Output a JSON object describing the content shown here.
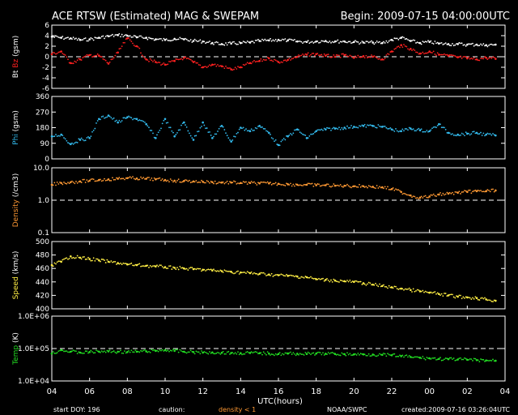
{
  "header": {
    "title": "ACE RTSW (Estimated) MAG & SWEPAM",
    "begin": "Begin: 2009-07-15 04:00:00UTC"
  },
  "footer": {
    "start_doy": "start DOY: 196",
    "caution": "caution:",
    "density_note": "density < 1",
    "agency": "NOAA/SWPC",
    "created": "created:2009-07-16 03:26:04UTC"
  },
  "x_axis": {
    "label": "UTC(hours)",
    "ticks": [
      "04",
      "06",
      "08",
      "10",
      "12",
      "14",
      "16",
      "18",
      "20",
      "22",
      "00",
      "02",
      "04"
    ]
  },
  "colors": {
    "white": "#ffffff",
    "red": "#ff2020",
    "cyan": "#33bbee",
    "orange": "#ff9933",
    "yellow": "#ffee44",
    "green": "#22dd22"
  },
  "chart_data": [
    {
      "type": "scatter",
      "panel": "mag",
      "ylim": [
        -6,
        6
      ],
      "yticks": [
        6,
        4,
        2,
        0,
        -2,
        -4,
        -6
      ],
      "ytick_labels": [
        "6",
        "4",
        "2",
        "0",
        "-2",
        "-4",
        "-6"
      ],
      "ylabel_parts": [
        {
          "text": "Bt",
          "color": "#ffffff"
        },
        {
          "text": " Bz",
          "color": "#ff2020"
        },
        {
          "text": " (gsm)",
          "color": "#ffffff"
        }
      ],
      "dashed_ref": 0,
      "series": [
        {
          "key": "Bt",
          "color": "#ffffff",
          "x": [
            4,
            4.5,
            5,
            5.5,
            6,
            6.5,
            7,
            7.5,
            8,
            8.5,
            9,
            9.5,
            10,
            10.5,
            11,
            11.5,
            12,
            12.5,
            13,
            13.5,
            14,
            14.5,
            15,
            15.5,
            16,
            16.5,
            17,
            17.5,
            18,
            18.5,
            19,
            19.5,
            20,
            20.5,
            21,
            21.5,
            22,
            22.5,
            23,
            23.5,
            24,
            24.5,
            25,
            25.5,
            26,
            26.5,
            27,
            27.5
          ],
          "y": [
            3.8,
            3.6,
            3.5,
            3.2,
            3.3,
            3.6,
            3.9,
            4.1,
            4.0,
            3.7,
            3.6,
            3.3,
            3.2,
            3.4,
            3.3,
            3.0,
            2.9,
            2.6,
            2.4,
            2.5,
            2.6,
            2.7,
            3.0,
            3.1,
            3.2,
            3.1,
            2.9,
            2.8,
            2.9,
            3.0,
            2.9,
            2.9,
            2.8,
            2.7,
            2.7,
            2.6,
            3.2,
            3.6,
            3.0,
            2.6,
            2.8,
            2.5,
            2.4,
            2.4,
            2.3,
            2.3,
            2.2,
            2.3
          ]
        },
        {
          "key": "Bz",
          "color": "#ff2020",
          "x": [
            4,
            4.5,
            5,
            5.5,
            6,
            6.5,
            7,
            7.5,
            8,
            8.5,
            9,
            9.5,
            10,
            10.5,
            11,
            11.5,
            12,
            12.5,
            13,
            13.5,
            14,
            14.5,
            15,
            15.5,
            16,
            16.5,
            17,
            17.5,
            18,
            18.5,
            19,
            19.5,
            20,
            20.5,
            21,
            21.5,
            22,
            22.5,
            23,
            23.5,
            24,
            24.5,
            25,
            25.5,
            26,
            26.5,
            27,
            27.5
          ],
          "y": [
            0.5,
            1.0,
            -1.2,
            -0.5,
            0.3,
            0.2,
            -1.3,
            0.8,
            3.5,
            2.0,
            -0.5,
            -1.0,
            -1.5,
            -0.8,
            -0.2,
            -1.0,
            -2.0,
            -1.5,
            -1.8,
            -2.4,
            -2.0,
            -1.2,
            -0.8,
            -0.3,
            -1.0,
            -0.6,
            0.0,
            0.4,
            0.5,
            0.2,
            0.0,
            0.3,
            -0.2,
            0.1,
            0.0,
            -0.5,
            1.0,
            2.2,
            1.5,
            0.6,
            1.0,
            0.4,
            0.2,
            -0.1,
            -0.3,
            -0.5,
            -0.2,
            -0.4
          ]
        }
      ]
    },
    {
      "type": "scatter",
      "panel": "phi",
      "ylim": [
        0,
        360
      ],
      "yticks": [
        360,
        270,
        180,
        90,
        0
      ],
      "ytick_labels": [
        "360",
        "270",
        "180",
        "90",
        "0"
      ],
      "ylabel_parts": [
        {
          "text": "Phi",
          "color": "#33bbee"
        },
        {
          "text": " (gsm)",
          "color": "#ffffff"
        }
      ],
      "series": [
        {
          "key": "Phi",
          "color": "#33bbee",
          "x": [
            4,
            4.5,
            5,
            5.5,
            6,
            6.5,
            7,
            7.5,
            8,
            8.5,
            9,
            9.5,
            10,
            10.5,
            11,
            11.5,
            12,
            12.5,
            13,
            13.5,
            14,
            14.5,
            15,
            15.5,
            16,
            16.5,
            17,
            17.5,
            18,
            18.5,
            19,
            19.5,
            20,
            20.5,
            21,
            21.5,
            22,
            22.5,
            23,
            23.5,
            24,
            24.5,
            25,
            25.5,
            26,
            26.5,
            27,
            27.5
          ],
          "y": [
            130,
            140,
            85,
            110,
            120,
            230,
            250,
            210,
            240,
            230,
            200,
            120,
            230,
            130,
            210,
            110,
            210,
            120,
            190,
            100,
            180,
            160,
            190,
            150,
            80,
            130,
            170,
            120,
            160,
            170,
            175,
            180,
            185,
            190,
            190,
            185,
            170,
            160,
            175,
            165,
            160,
            200,
            150,
            140,
            145,
            150,
            140,
            135
          ]
        }
      ]
    },
    {
      "type": "scatter",
      "panel": "density",
      "yscale": "log",
      "ylim": [
        0.1,
        10.0
      ],
      "yticks": [
        10.0,
        1.0,
        0.1
      ],
      "ytick_labels": [
        "10.0",
        "1.0",
        "0.1"
      ],
      "ylabel_parts": [
        {
          "text": "Density",
          "color": "#ff9933"
        },
        {
          "text": " (/cm3)",
          "color": "#ffffff"
        }
      ],
      "dashed_ref": 1.0,
      "series": [
        {
          "key": "Density",
          "color": "#ff9933",
          "x": [
            4,
            4.5,
            5,
            5.5,
            6,
            6.5,
            7,
            7.5,
            8,
            8.5,
            9,
            9.5,
            10,
            10.5,
            11,
            11.5,
            12,
            12.5,
            13,
            13.5,
            14,
            14.5,
            15,
            15.5,
            16,
            16.5,
            17,
            17.5,
            18,
            18.5,
            19,
            19.5,
            20,
            20.5,
            21,
            21.5,
            22,
            22.5,
            23,
            23.5,
            24,
            24.5,
            25,
            25.5,
            26,
            26.5,
            27,
            27.5
          ],
          "y": [
            3.0,
            3.4,
            3.6,
            3.8,
            4.0,
            4.2,
            4.4,
            4.6,
            4.8,
            4.7,
            4.6,
            4.4,
            4.2,
            4.0,
            3.9,
            3.8,
            3.7,
            3.6,
            3.5,
            3.5,
            3.4,
            3.4,
            3.3,
            3.3,
            3.2,
            3.1,
            3.0,
            3.0,
            2.9,
            2.9,
            2.8,
            2.8,
            2.7,
            2.7,
            2.6,
            2.5,
            2.2,
            1.8,
            1.4,
            1.2,
            1.3,
            1.5,
            1.6,
            1.7,
            1.8,
            1.9,
            1.9,
            2.0
          ]
        }
      ]
    },
    {
      "type": "scatter",
      "panel": "speed",
      "ylim": [
        400,
        500
      ],
      "yticks": [
        500,
        480,
        460,
        440,
        420,
        400
      ],
      "ytick_labels": [
        "500",
        "480",
        "460",
        "440",
        "420",
        "400"
      ],
      "ylabel_parts": [
        {
          "text": "Speed",
          "color": "#ffee44"
        },
        {
          "text": " (km/s)",
          "color": "#ffffff"
        }
      ],
      "series": [
        {
          "key": "Speed",
          "color": "#ffee44",
          "x": [
            4,
            4.5,
            5,
            5.5,
            6,
            6.5,
            7,
            7.5,
            8,
            8.5,
            9,
            9.5,
            10,
            10.5,
            11,
            11.5,
            12,
            12.5,
            13,
            13.5,
            14,
            14.5,
            15,
            15.5,
            16,
            16.5,
            17,
            17.5,
            18,
            18.5,
            19,
            19.5,
            20,
            20.5,
            21,
            21.5,
            22,
            22.5,
            23,
            23.5,
            24,
            24.5,
            25,
            25.5,
            26,
            26.5,
            27,
            27.5
          ],
          "y": [
            465,
            470,
            478,
            476,
            474,
            472,
            470,
            468,
            466,
            465,
            464,
            463,
            462,
            461,
            460,
            459,
            458,
            457,
            456,
            455,
            454,
            453,
            452,
            451,
            450,
            449,
            448,
            447,
            444,
            443,
            442,
            441,
            440,
            438,
            436,
            434,
            432,
            430,
            428,
            426,
            424,
            422,
            420,
            418,
            417,
            416,
            414,
            412
          ]
        }
      ]
    },
    {
      "type": "scatter",
      "panel": "temp",
      "yscale": "log",
      "ylim": [
        10000,
        1000000
      ],
      "yticks": [
        1000000,
        100000,
        10000
      ],
      "ytick_labels": [
        "1.0E+06",
        "1.0E+05",
        "1.0E+04"
      ],
      "ylabel_parts": [
        {
          "text": "Temp",
          "color": "#22dd22"
        },
        {
          "text": " (K)",
          "color": "#ffffff"
        }
      ],
      "dashed_ref": 100000,
      "series": [
        {
          "key": "Temp",
          "color": "#22dd22",
          "x": [
            4,
            4.5,
            5,
            5.5,
            6,
            6.5,
            7,
            7.5,
            8,
            8.5,
            9,
            9.5,
            10,
            10.5,
            11,
            11.5,
            12,
            12.5,
            13,
            13.5,
            14,
            14.5,
            15,
            15.5,
            16,
            16.5,
            17,
            17.5,
            18,
            18.5,
            19,
            19.5,
            20,
            20.5,
            21,
            21.5,
            22,
            22.5,
            23,
            23.5,
            24,
            24.5,
            25,
            25.5,
            26,
            26.5,
            27,
            27.5
          ],
          "y": [
            70000,
            90000,
            80000,
            75000,
            78000,
            80000,
            82000,
            80000,
            78000,
            80000,
            82000,
            85000,
            90000,
            85000,
            80000,
            78000,
            75000,
            76000,
            74000,
            73000,
            72000,
            73000,
            72000,
            70000,
            68000,
            70000,
            69000,
            68000,
            70000,
            69000,
            68000,
            67000,
            66000,
            66000,
            65000,
            64000,
            62000,
            58000,
            55000,
            52000,
            50000,
            48000,
            47000,
            46000,
            45000,
            44000,
            43000,
            42000
          ]
        }
      ]
    }
  ]
}
